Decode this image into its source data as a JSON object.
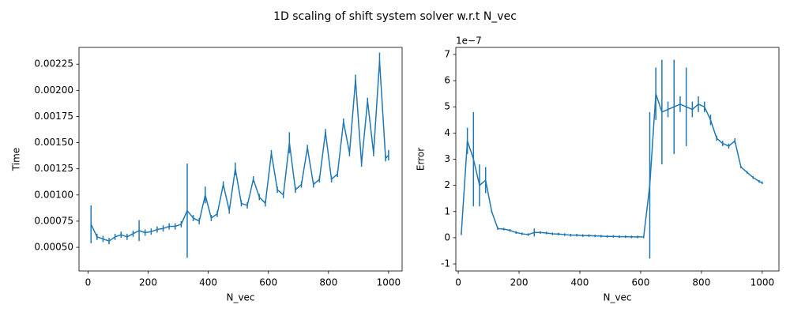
{
  "title": "1D scaling of shift system solver w.r.t N_vec",
  "chart_data": [
    {
      "type": "errorbar-line",
      "xlabel": "N_vec",
      "ylabel": "Time",
      "color": "#1f77b4",
      "x": [
        10,
        30,
        50,
        70,
        90,
        110,
        130,
        150,
        170,
        190,
        210,
        230,
        250,
        270,
        290,
        310,
        330,
        350,
        370,
        390,
        410,
        430,
        450,
        470,
        490,
        510,
        530,
        550,
        570,
        590,
        610,
        630,
        650,
        670,
        690,
        710,
        730,
        750,
        770,
        790,
        810,
        830,
        850,
        870,
        890,
        910,
        930,
        950,
        970,
        990,
        1000
      ],
      "values": [
        0.00072,
        0.0006,
        0.00058,
        0.00056,
        0.0006,
        0.00062,
        0.0006,
        0.00063,
        0.00066,
        0.00064,
        0.00065,
        0.00067,
        0.00068,
        0.0007,
        0.0007,
        0.00072,
        0.00085,
        0.00078,
        0.00075,
        0.001,
        0.00078,
        0.00082,
        0.0011,
        0.00085,
        0.00125,
        0.00092,
        0.0009,
        0.00115,
        0.00098,
        0.00092,
        0.0014,
        0.00105,
        0.001,
        0.0015,
        0.00105,
        0.0011,
        0.00145,
        0.0011,
        0.00115,
        0.0016,
        0.00115,
        0.0012,
        0.0017,
        0.0014,
        0.0021,
        0.0013,
        0.0019,
        0.0014,
        0.00228,
        0.00135,
        0.00138
      ],
      "errors": [
        0.00018,
        3e-05,
        3e-05,
        3e-05,
        3e-05,
        3e-05,
        3e-05,
        3e-05,
        0.0001,
        3e-05,
        3e-05,
        3e-05,
        3e-05,
        3e-05,
        3e-05,
        3e-05,
        0.00045,
        3e-05,
        3e-05,
        8e-05,
        3e-05,
        3e-05,
        3e-05,
        3e-05,
        6e-05,
        3e-05,
        3e-05,
        3e-05,
        3e-05,
        3e-05,
        3e-05,
        3e-05,
        3e-05,
        0.0001,
        3e-05,
        3e-05,
        3e-05,
        3e-05,
        3e-05,
        3e-05,
        3e-05,
        3e-05,
        3e-05,
        3e-05,
        5e-05,
        3e-05,
        3e-05,
        3e-05,
        8e-05,
        3e-05,
        5e-05
      ],
      "xlim": [
        -30,
        1045
      ],
      "ylim": [
        0.000274,
        0.00241
      ],
      "xticks": [
        0,
        200,
        400,
        600,
        800,
        1000
      ],
      "yticks": [
        {
          "value": 0.0005,
          "label": "0.00050"
        },
        {
          "value": 0.00075,
          "label": "0.00075"
        },
        {
          "value": 0.001,
          "label": "0.00100"
        },
        {
          "value": 0.00125,
          "label": "0.00125"
        },
        {
          "value": 0.0015,
          "label": "0.00150"
        },
        {
          "value": 0.00175,
          "label": "0.00175"
        },
        {
          "value": 0.002,
          "label": "0.00200"
        },
        {
          "value": 0.00225,
          "label": "0.00225"
        }
      ]
    },
    {
      "type": "errorbar-line",
      "xlabel": "N_vec",
      "ylabel": "Error",
      "y_offset_label": "1e−7",
      "color": "#1f77b4",
      "x": [
        10,
        30,
        50,
        70,
        90,
        110,
        130,
        150,
        170,
        190,
        210,
        230,
        250,
        270,
        290,
        310,
        330,
        350,
        370,
        390,
        410,
        430,
        450,
        470,
        490,
        510,
        530,
        550,
        570,
        590,
        610,
        630,
        650,
        670,
        690,
        710,
        730,
        750,
        770,
        790,
        810,
        830,
        850,
        870,
        890,
        910,
        930,
        950,
        970,
        990,
        1000
      ],
      "values": [
        0.15,
        3.7,
        3.0,
        2.0,
        2.2,
        1.0,
        0.35,
        0.33,
        0.28,
        0.2,
        0.15,
        0.12,
        0.2,
        0.2,
        0.18,
        0.15,
        0.14,
        0.12,
        0.1,
        0.1,
        0.08,
        0.08,
        0.07,
        0.06,
        0.05,
        0.05,
        0.04,
        0.04,
        0.03,
        0.03,
        0.03,
        2.0,
        5.5,
        4.8,
        4.9,
        5.0,
        5.1,
        5.0,
        4.9,
        5.1,
        5.0,
        4.5,
        3.8,
        3.6,
        3.5,
        3.7,
        2.7,
        2.5,
        2.3,
        2.15,
        2.1
      ],
      "errors": [
        0.05,
        0.5,
        1.8,
        0.8,
        0.5,
        0.05,
        0.05,
        0.05,
        0.05,
        0.05,
        0.05,
        0.05,
        0.15,
        0.05,
        0.05,
        0.05,
        0.05,
        0.05,
        0.05,
        0.05,
        0.05,
        0.05,
        0.05,
        0.05,
        0.05,
        0.05,
        0.05,
        0.05,
        0.05,
        0.05,
        0.05,
        2.8,
        1.0,
        2.0,
        0.3,
        1.8,
        0.3,
        1.5,
        0.3,
        0.3,
        0.2,
        0.2,
        0.1,
        0.1,
        0.1,
        0.1,
        0.05,
        0.05,
        0.05,
        0.05,
        0.05
      ],
      "xlim": [
        -8,
        1055
      ],
      "ylim": [
        -1.27,
        7.27
      ],
      "xticks": [
        0,
        200,
        400,
        600,
        800,
        1000
      ],
      "yticks": [
        -1,
        0,
        1,
        2,
        3,
        4,
        5,
        6,
        7
      ]
    }
  ]
}
